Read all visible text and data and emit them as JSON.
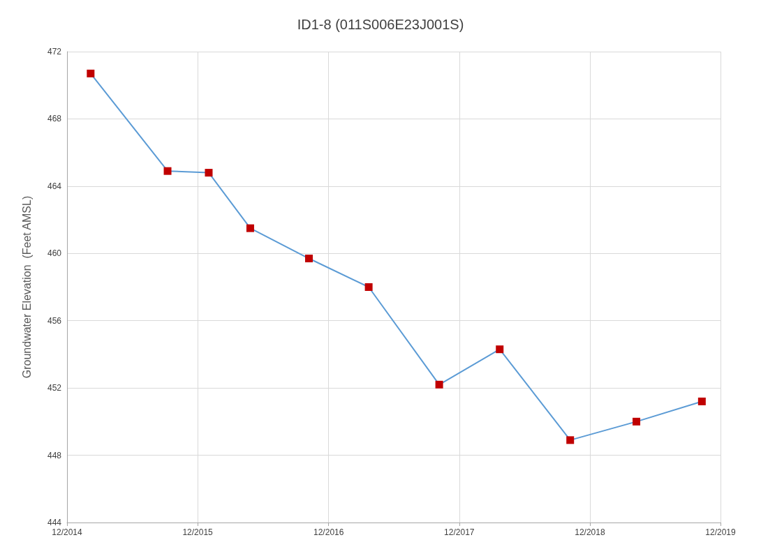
{
  "chart_data": {
    "type": "line",
    "title": "ID1-8 (011S006E23J001S)",
    "ylabel": "Groundwater Elevation  (Feet AMSL)",
    "x": [
      "2015-02-05",
      "2015-09-08",
      "2016-01-01",
      "2016-04-26",
      "2016-10-07",
      "2017-03-23",
      "2017-10-06",
      "2018-03-24",
      "2018-10-07",
      "2019-04-10",
      "2019-10-10"
    ],
    "series": [
      {
        "color": "#5b9bd5",
        "colors": [
          "#c00000",
          "#c00000",
          "#c00000",
          "#c00000",
          "#c00000",
          "#c00000",
          "#c00000",
          "#c00000",
          "#c00000",
          "#c00000",
          "#c00000"
        ],
        "values": [
          470.7,
          464.9,
          464.8,
          461.5,
          459.7,
          458.0,
          452.2,
          454.3,
          448.9,
          450.0,
          451.2
        ]
      }
    ],
    "xlim": [
      "2014-12-01",
      "2019-12-01"
    ],
    "xticks": [
      {
        "value": "2014-12-01",
        "label": "12/2014"
      },
      {
        "value": "2015-12-01",
        "label": "12/2015"
      },
      {
        "value": "2016-12-01",
        "label": "12/2016"
      },
      {
        "value": "2017-12-01",
        "label": "12/2017"
      },
      {
        "value": "2018-12-01",
        "label": "12/2018"
      },
      {
        "value": "2019-12-01",
        "label": "12/2019"
      }
    ],
    "ylim": [
      444,
      472
    ],
    "yticks": [
      444,
      448,
      452,
      456,
      460,
      464,
      468,
      472
    ],
    "grid": true,
    "marker": "square",
    "line_style": "solid"
  }
}
